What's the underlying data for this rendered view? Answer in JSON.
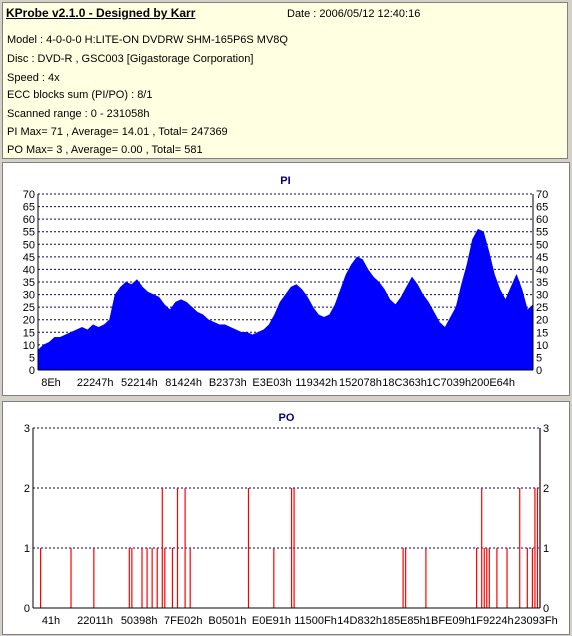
{
  "info": {
    "title": "KProbe v2.1.0 - Designed by Karr",
    "date": "Date : 2006/05/12 12:40:16",
    "lines": [
      "Model : 4-0-0-0 H:LITE-ON DVDRW SHM-165P6S MV8Q",
      "Disc : DVD-R , GSC003 [Gigastorage Corporation]",
      "Speed : 4x",
      "ECC blocks sum (PI/PO) : 8/1",
      "Scanned range : 0 - 231058h",
      "PI Max= 71 , Average= 14.01 , Total= 247369",
      "PO Max= 3 , Average= 0.00 , Total= 581"
    ]
  },
  "colors": {
    "pi_fill": "#0000ff",
    "po_bar": "#ff0000",
    "grid": "#000080",
    "info_bg": "#ffffe1"
  },
  "chart_data": [
    {
      "type": "area",
      "title": "PI",
      "xlabel": "",
      "ylabel": "",
      "ylim": [
        0,
        70
      ],
      "yticks": [
        0,
        5,
        10,
        15,
        20,
        25,
        30,
        35,
        40,
        45,
        50,
        55,
        60,
        65,
        70
      ],
      "xtick_labels": [
        "8Eh",
        "22247h",
        "52214h",
        "81424h",
        "B2373h",
        "E3E03h",
        "119342h",
        "152078h",
        "18C363h",
        "1C7039h",
        "200E64h"
      ],
      "grid": true,
      "series": [
        {
          "values": [
            8,
            10,
            11,
            13,
            13,
            14,
            15,
            16,
            17,
            16,
            18,
            17,
            18,
            20,
            30,
            33,
            35,
            34,
            36,
            33,
            31,
            30,
            29,
            26,
            24,
            27,
            28,
            27,
            25,
            23,
            22,
            20,
            19,
            18,
            18,
            17,
            16,
            15,
            15,
            14,
            15,
            16,
            18,
            22,
            27,
            30,
            33,
            34,
            32,
            29,
            25,
            22,
            21,
            22,
            26,
            32,
            38,
            42,
            45,
            44,
            40,
            37,
            35,
            32,
            28,
            26,
            29,
            33,
            37,
            34,
            30,
            27,
            23,
            19,
            17,
            21,
            25,
            34,
            42,
            52,
            56,
            55,
            47,
            38,
            32,
            28,
            33,
            38,
            32,
            24,
            26
          ]
        }
      ]
    },
    {
      "type": "bar",
      "title": "PO",
      "xlabel": "",
      "ylabel": "",
      "ylim": [
        0,
        3
      ],
      "yticks": [
        0,
        1,
        2,
        3
      ],
      "xtick_labels": [
        "41h",
        "22011h",
        "50398h",
        "7FE02h",
        "B0501h",
        "E0E91h",
        "11500Fh",
        "14D832h",
        "185E85h",
        "1BFE09h",
        "1F9224h",
        "23093Fh"
      ],
      "grid": true,
      "x": [
        0.015,
        0.075,
        0.12,
        0.19,
        0.195,
        0.215,
        0.225,
        0.235,
        0.245,
        0.255,
        0.26,
        0.275,
        0.285,
        0.3,
        0.31,
        0.425,
        0.475,
        0.51,
        0.515,
        0.73,
        0.735,
        0.775,
        0.875,
        0.885,
        0.89,
        0.895,
        0.9,
        0.915,
        0.935,
        0.96,
        0.975,
        0.985,
        0.99,
        0.995,
        1.0
      ],
      "values": [
        1,
        1,
        1,
        1,
        1,
        1,
        1,
        1,
        1,
        2,
        1,
        1,
        2,
        2,
        1,
        2,
        1,
        2,
        2,
        1,
        1,
        1,
        1,
        2,
        1,
        1,
        1,
        1,
        1,
        2,
        1,
        1,
        2,
        2,
        3
      ]
    }
  ]
}
